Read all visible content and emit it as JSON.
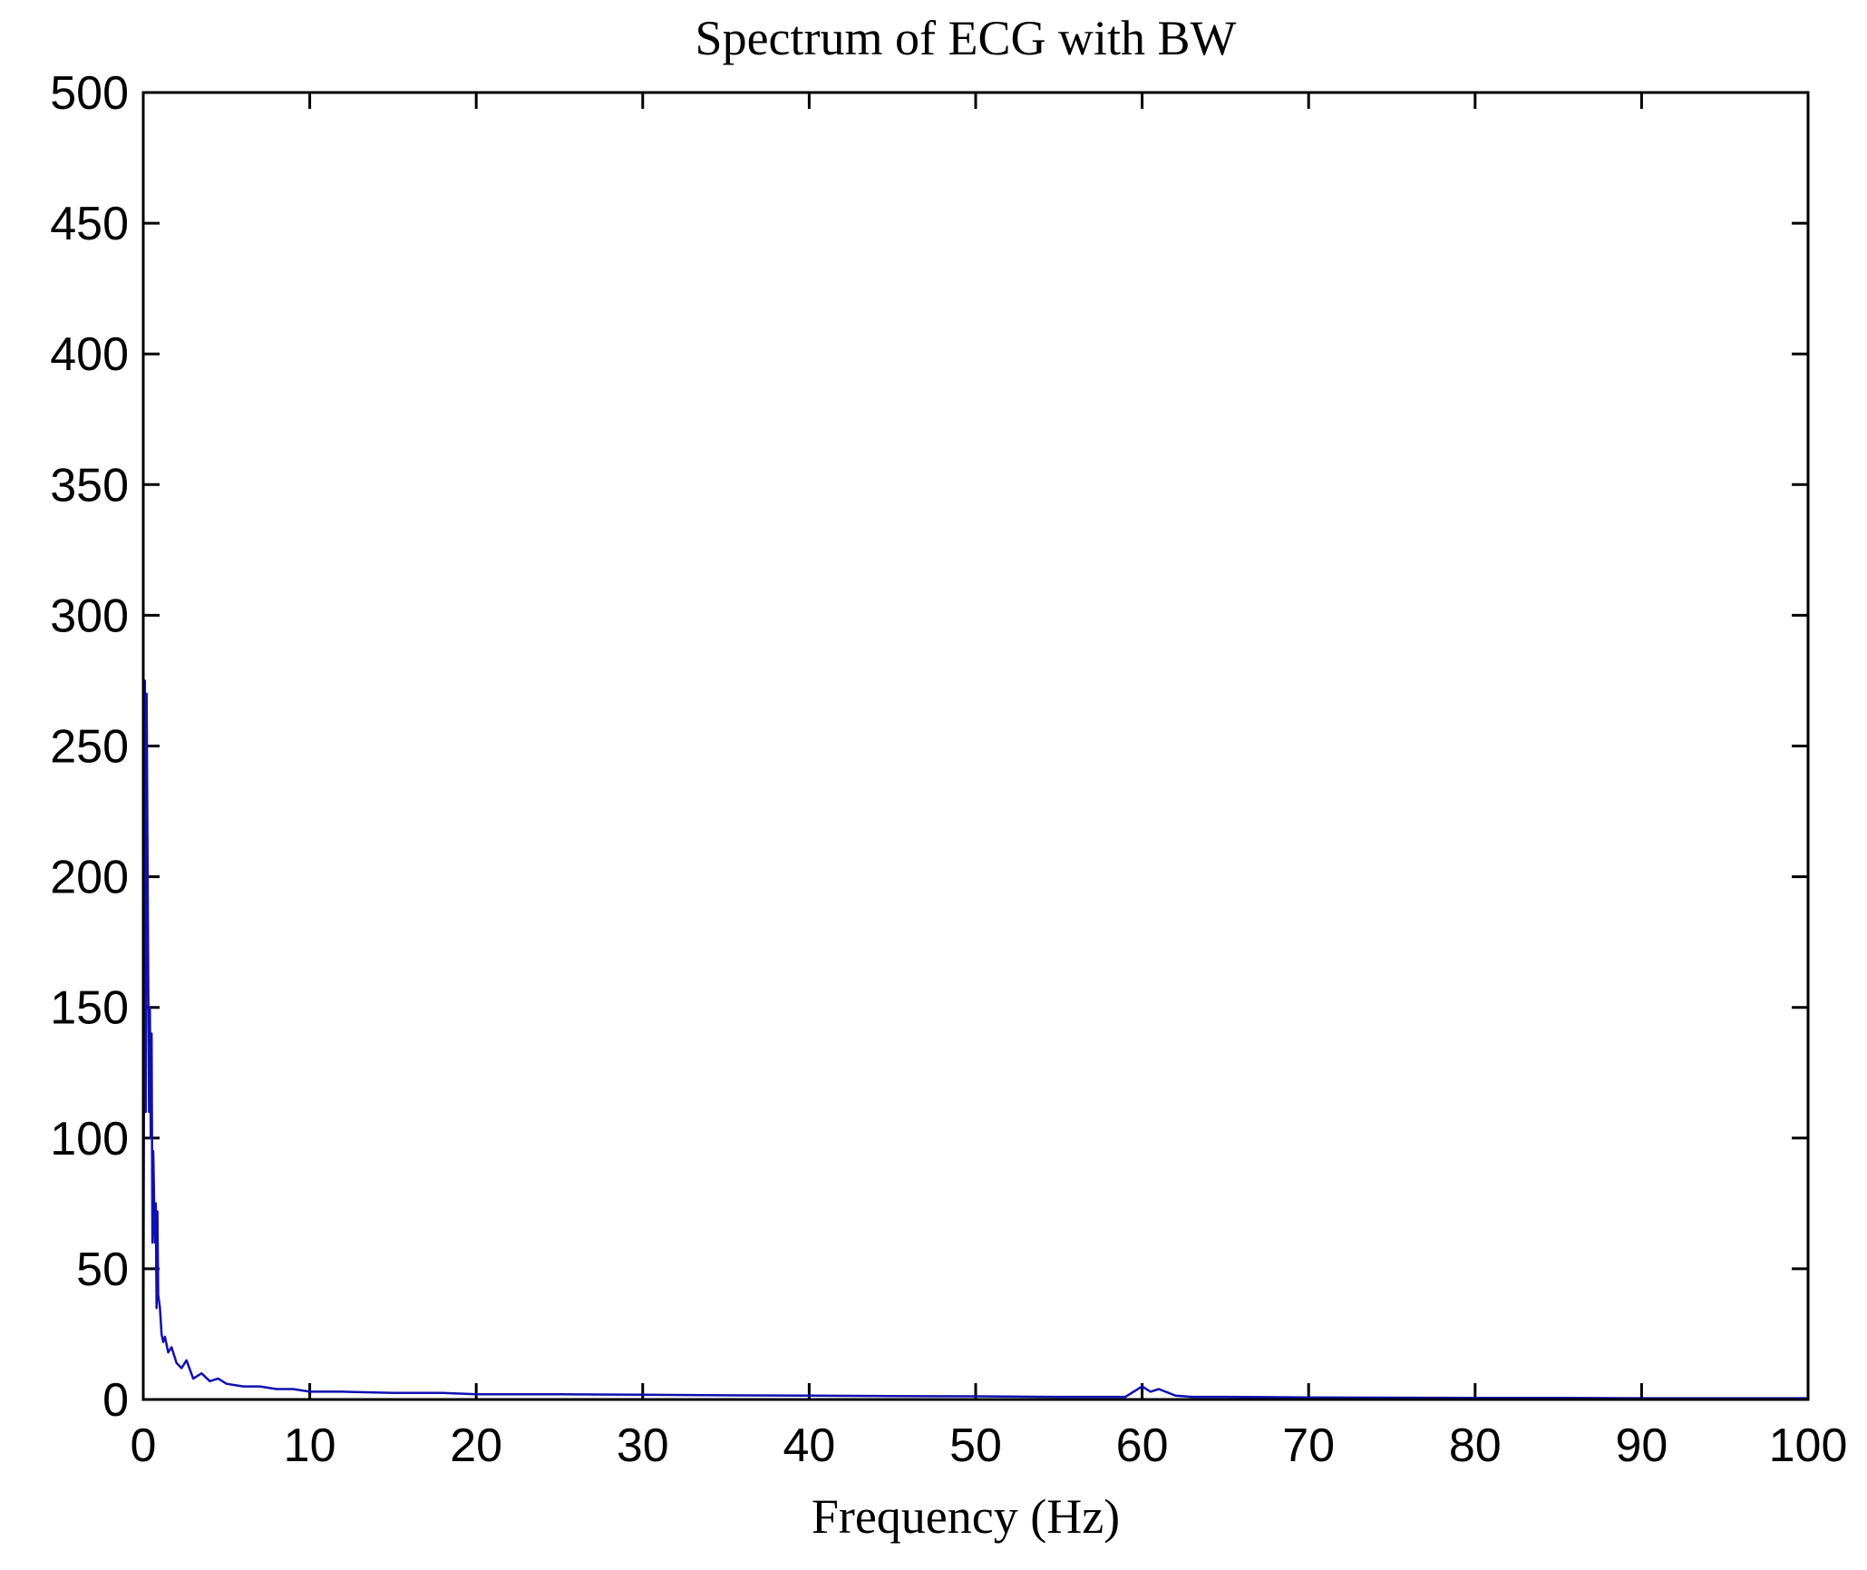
{
  "chart_data": {
    "type": "line",
    "title": "Spectrum of ECG with BW",
    "xlabel": "Frequency (Hz)",
    "ylabel": "",
    "xlim": [
      0,
      100
    ],
    "ylim": [
      0,
      500
    ],
    "xticks": [
      0,
      10,
      20,
      30,
      40,
      50,
      60,
      70,
      80,
      90,
      100
    ],
    "yticks": [
      0,
      50,
      100,
      150,
      200,
      250,
      300,
      350,
      400,
      450,
      500
    ],
    "grid": false,
    "legend": "none",
    "line_color": "#1010b0",
    "series": [
      {
        "x": [
          0,
          0.1,
          0.15,
          0.2,
          0.3,
          0.35,
          0.4,
          0.45,
          0.5,
          0.55,
          0.6,
          0.7,
          0.75,
          0.8,
          0.85,
          0.9,
          1.0,
          1.1,
          1.2,
          1.3,
          1.5,
          1.7,
          2.0,
          2.3,
          2.6,
          3.0,
          3.5,
          4.0,
          4.5,
          5.0,
          6.0,
          7.0,
          8.0,
          9.0,
          10,
          12,
          15,
          18,
          20,
          25,
          30,
          35,
          40,
          45,
          50,
          55,
          59,
          60,
          60.5,
          61,
          62,
          63,
          65,
          70,
          75,
          80,
          85,
          90,
          95,
          100
        ],
        "y": [
          0,
          275,
          110,
          270,
          160,
          110,
          150,
          100,
          140,
          60,
          95,
          60,
          75,
          35,
          72,
          40,
          35,
          25,
          22,
          24,
          18,
          20,
          14,
          12,
          15,
          8,
          10,
          7,
          8,
          6,
          5,
          5,
          4,
          4,
          3,
          3,
          2.5,
          2.5,
          2,
          2,
          1.8,
          1.6,
          1.5,
          1.3,
          1.2,
          1.0,
          1.0,
          5,
          3,
          4,
          1.5,
          1.0,
          1.0,
          0.8,
          0.7,
          0.6,
          0.6,
          0.5,
          0.5,
          0.5
        ]
      }
    ]
  }
}
